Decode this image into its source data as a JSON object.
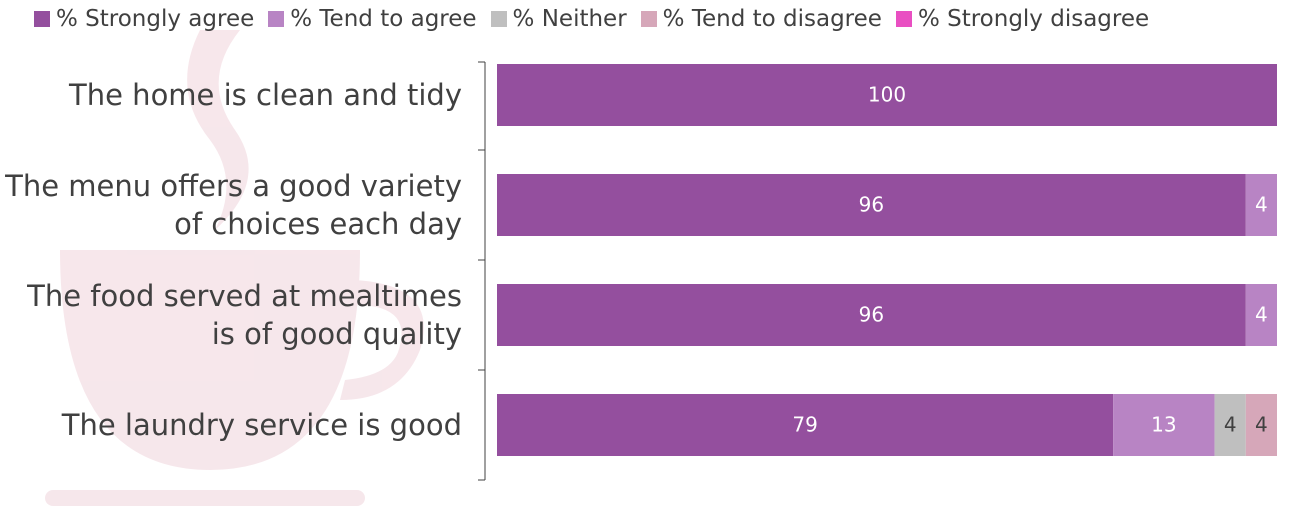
{
  "chart_data": {
    "type": "stacked-bar-horizontal",
    "categories": [
      "The home is clean and tidy",
      "The menu offers a good variety of choices each day",
      "The food served at mealtimes is of good quality",
      "The laundry service is good"
    ],
    "series": [
      {
        "name": "% Strongly agree",
        "color": "#944f9e",
        "values": [
          100,
          96,
          96,
          79
        ]
      },
      {
        "name": "% Tend to agree",
        "color": "#b884c4",
        "values": [
          null,
          4,
          4,
          13
        ]
      },
      {
        "name": "% Neither",
        "color": "#bfbfbf",
        "values": [
          null,
          null,
          null,
          4
        ]
      },
      {
        "name": "% Tend to disagree",
        "color": "#d6a7b9",
        "values": [
          null,
          null,
          null,
          4
        ]
      },
      {
        "name": "% Strongly disagree",
        "color": "#e94fc2",
        "values": [
          null,
          null,
          null,
          null
        ]
      }
    ],
    "xlim": [
      0,
      100
    ]
  }
}
